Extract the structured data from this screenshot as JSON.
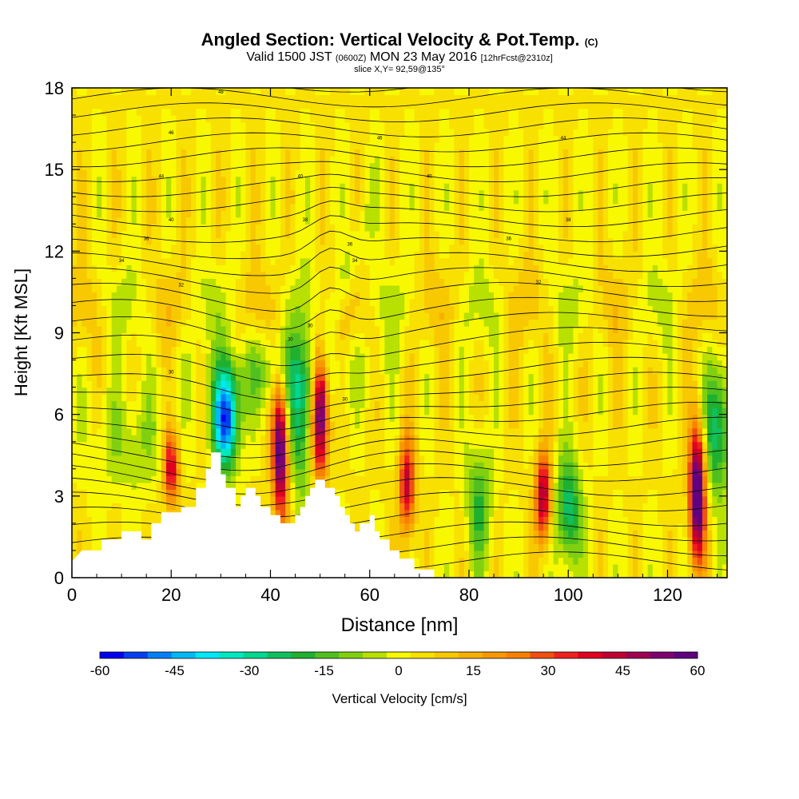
{
  "header": {
    "title_main": "Angled Section: Vertical Velocity & Pot.Temp.",
    "title_tag": "(C)",
    "valid_a": "Valid 1500 JST",
    "valid_b": "(0600Z)",
    "valid_c": "MON 23 May 2016",
    "valid_d": "[12hrFcst@2310z]",
    "slice": "slice X,Y= 92,59@135°"
  },
  "chart_data": {
    "type": "heatmap",
    "xlabel": "Distance [nm]",
    "ylabel": "Height [Kft MSL]",
    "xlim": [
      0,
      132
    ],
    "ylim": [
      0,
      18
    ],
    "xticks": [
      0,
      20,
      40,
      60,
      80,
      100,
      120
    ],
    "yticks": [
      0,
      3,
      6,
      9,
      12,
      15,
      18
    ],
    "colorbar": {
      "label": "Vertical Velocity [cm/s]",
      "min": -60,
      "max": 60,
      "step": 5,
      "ticks": [
        -60,
        -45,
        -30,
        -15,
        0,
        15,
        30,
        45,
        60
      ],
      "colors": [
        "#0000f0",
        "#0040f0",
        "#0080f8",
        "#00b8f8",
        "#00e8f8",
        "#00e8c0",
        "#00d890",
        "#10c060",
        "#20b030",
        "#50c020",
        "#80d010",
        "#b8e000",
        "#f8f800",
        "#f8e000",
        "#f8c800",
        "#f8b000",
        "#f89800",
        "#f88000",
        "#f05010",
        "#f02020",
        "#e00020",
        "#c00030",
        "#a00050",
        "#800070",
        "#600080"
      ]
    },
    "terrain_kft": [
      [
        0,
        0.6
      ],
      [
        2,
        1
      ],
      [
        6,
        1
      ],
      [
        6,
        1.4
      ],
      [
        10,
        1.4
      ],
      [
        10,
        1.7
      ],
      [
        14,
        1.7
      ],
      [
        14,
        1.4
      ],
      [
        16,
        1.4
      ],
      [
        16,
        2
      ],
      [
        18,
        2
      ],
      [
        18,
        2.4
      ],
      [
        22,
        2.4
      ],
      [
        22,
        2.6
      ],
      [
        25,
        2.6
      ],
      [
        25,
        3.3
      ],
      [
        27,
        3.3
      ],
      [
        27,
        4
      ],
      [
        28,
        4
      ],
      [
        28,
        4.6
      ],
      [
        30,
        4.6
      ],
      [
        30,
        3.8
      ],
      [
        31,
        3.8
      ],
      [
        31,
        3.3
      ],
      [
        33,
        3.3
      ],
      [
        33,
        2.6
      ],
      [
        34,
        2.6
      ],
      [
        34,
        3
      ],
      [
        35,
        3
      ],
      [
        35,
        3.3
      ],
      [
        37,
        3.3
      ],
      [
        37,
        3
      ],
      [
        38,
        3
      ],
      [
        38,
        2.6
      ],
      [
        40,
        2.6
      ],
      [
        40,
        2.3
      ],
      [
        42,
        2.3
      ],
      [
        42,
        2
      ],
      [
        45,
        2
      ],
      [
        45,
        2.3
      ],
      [
        46,
        2.3
      ],
      [
        46,
        2.6
      ],
      [
        47,
        2.6
      ],
      [
        47,
        3
      ],
      [
        48,
        3
      ],
      [
        48,
        3.3
      ],
      [
        49,
        3.3
      ],
      [
        49,
        3.6
      ],
      [
        51,
        3.6
      ],
      [
        51,
        3.3
      ],
      [
        53,
        3.3
      ],
      [
        53,
        3
      ],
      [
        54,
        3
      ],
      [
        54,
        2.6
      ],
      [
        55,
        2.6
      ],
      [
        55,
        2.3
      ],
      [
        56,
        2.3
      ],
      [
        56,
        2
      ],
      [
        57,
        2
      ],
      [
        57,
        1.7
      ],
      [
        58,
        1.7
      ],
      [
        58,
        2
      ],
      [
        60,
        2
      ],
      [
        60,
        2.3
      ],
      [
        61,
        2.3
      ],
      [
        61,
        1.7
      ],
      [
        62,
        1.7
      ],
      [
        62,
        1.4
      ],
      [
        64,
        1.4
      ],
      [
        64,
        1
      ],
      [
        66,
        1
      ],
      [
        66,
        0.7
      ],
      [
        69,
        0.7
      ],
      [
        69,
        0.3
      ],
      [
        73,
        0.3
      ],
      [
        73,
        0
      ],
      [
        132,
        0
      ]
    ],
    "updraft_cores": [
      {
        "x": 20,
        "z_bottom": 2.6,
        "z_top": 5.4,
        "w_max": 40
      },
      {
        "x": 42,
        "z_bottom": 2.2,
        "z_top": 7.2,
        "w_max": 60
      },
      {
        "x": 50,
        "z_bottom": 3.8,
        "z_top": 8.6,
        "w_max": 65
      },
      {
        "x": 67.5,
        "z_bottom": 1.5,
        "z_top": 5.2,
        "w_max": 40
      },
      {
        "x": 95,
        "z_bottom": 1.3,
        "z_top": 4.6,
        "w_max": 45
      },
      {
        "x": 126,
        "z_bottom": 0.6,
        "z_top": 5.6,
        "w_max": 65
      }
    ],
    "downdraft_cores": [
      {
        "x": 31,
        "z_bottom": 4,
        "z_top": 7.5,
        "w_min": -55
      },
      {
        "x": 46,
        "z_bottom": 3,
        "z_top": 8.5,
        "w_min": -25
      },
      {
        "x": 82,
        "z_bottom": 0.5,
        "z_top": 5,
        "w_min": -20
      },
      {
        "x": 100,
        "z_bottom": 0.5,
        "z_top": 4.5,
        "w_min": -30
      },
      {
        "x": 130,
        "z_bottom": 3,
        "z_top": 8,
        "w_min": -30
      }
    ],
    "theta_contour_labels": [
      "48",
      "46",
      "46",
      "44",
      "44",
      "40",
      "40",
      "40",
      "38",
      "38",
      "36",
      "36",
      "36",
      "34",
      "34",
      "32",
      "32",
      "30",
      "30",
      "30",
      "30"
    ]
  }
}
